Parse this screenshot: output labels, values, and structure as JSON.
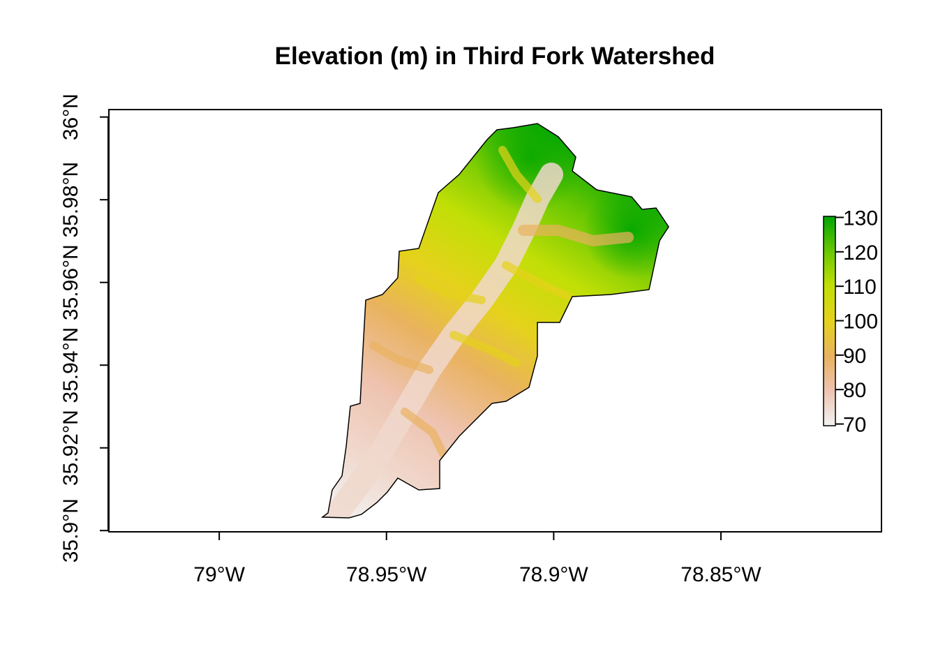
{
  "title": "Elevation (m) in Third Fork Watershed",
  "x_axis": {
    "ticks": [
      {
        "value": -79.0,
        "label": "79°W"
      },
      {
        "value": -78.95,
        "label": "78.95°W"
      },
      {
        "value": -78.9,
        "label": "78.9°W"
      },
      {
        "value": -78.85,
        "label": "78.85°W"
      }
    ],
    "range": [
      -79.033,
      -78.802
    ]
  },
  "y_axis": {
    "ticks": [
      {
        "value": 35.9,
        "label": "35.9°N"
      },
      {
        "value": 35.92,
        "label": "35.92°N"
      },
      {
        "value": 35.94,
        "label": "35.94°N"
      },
      {
        "value": 35.96,
        "label": "35.96°N"
      },
      {
        "value": 35.98,
        "label": "35.98°N"
      },
      {
        "value": 36.0,
        "label": "36°N"
      }
    ],
    "range": [
      35.8997,
      36.0018
    ]
  },
  "legend": {
    "ticks": [
      70,
      80,
      90,
      100,
      110,
      120,
      130
    ],
    "min": 69.5,
    "max": 130.3,
    "colors": [
      "#f2f2f2",
      "#eec3b0",
      "#e9b25f",
      "#e5d21b",
      "#c1df06",
      "#6cc802",
      "#00a600"
    ],
    "placement": "right"
  },
  "chart_data": {
    "type": "heatmap",
    "variable": "elevation",
    "units": "m",
    "value_range": [
      69.5,
      130.3
    ],
    "lon_range": [
      -78.968,
      -78.866
    ],
    "lat_range": [
      35.903,
      35.997
    ]
  }
}
